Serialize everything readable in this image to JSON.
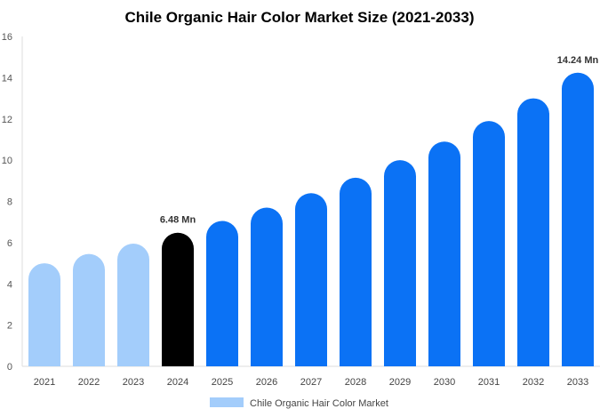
{
  "chart_data": {
    "type": "bar",
    "title": "Chile Organic Hair Color Market Size (2021-2033)",
    "xlabel": "",
    "ylabel": "",
    "ylim": [
      0,
      16
    ],
    "yticks": [
      0,
      2,
      4,
      6,
      8,
      10,
      12,
      14,
      16
    ],
    "grid": false,
    "legend": {
      "position": "bottom-center",
      "entries": [
        "Chile Organic Hair Color Market"
      ]
    },
    "categories": [
      "2021",
      "2022",
      "2023",
      "2024",
      "2025",
      "2026",
      "2027",
      "2028",
      "2029",
      "2030",
      "2031",
      "2032",
      "2033"
    ],
    "series": [
      {
        "name": "Chile Organic Hair Color Market",
        "values": [
          5.0,
          5.45,
          5.95,
          6.48,
          7.05,
          7.7,
          8.4,
          9.15,
          10.0,
          10.9,
          11.9,
          13.0,
          14.24
        ],
        "colors": [
          "#a3cdfb",
          "#a3cdfb",
          "#a3cdfb",
          "#000000",
          "#0b72f5",
          "#0b72f5",
          "#0b72f5",
          "#0b72f5",
          "#0b72f5",
          "#0b72f5",
          "#0b72f5",
          "#0b72f5",
          "#0b72f5"
        ]
      }
    ],
    "data_labels": [
      {
        "index": 3,
        "text": "6.48 Mn"
      },
      {
        "index": 12,
        "text": "14.24 Mn"
      }
    ],
    "legend_color": "#a3cdfb"
  }
}
